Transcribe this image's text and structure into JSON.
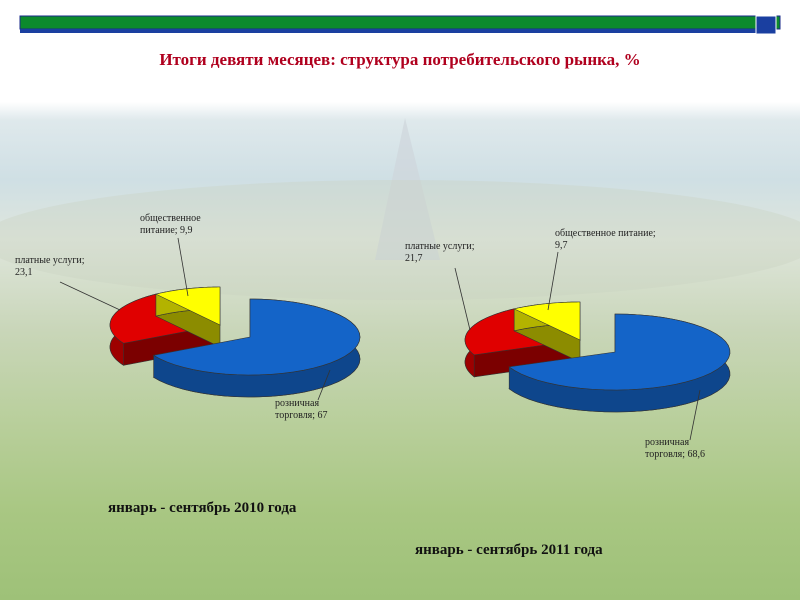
{
  "title": "Итоги девяти месяцев: структура потребительского рынка, %",
  "chart_data": [
    {
      "type": "pie",
      "title": "январь - сентябрь 2010 года",
      "values": [
        67,
        23.1,
        9.9
      ],
      "value_labels": [
        "розничная торговля; 67",
        "платные услуги; 23,1",
        "общественное питание; 9,9"
      ],
      "colors": [
        "#1464c8",
        "#e00000",
        "#ffff00"
      ]
    },
    {
      "type": "pie",
      "title": "январь - сентябрь 2011 года",
      "values": [
        68.6,
        21.7,
        9.7
      ],
      "value_labels": [
        "розничная торговля; 68,6",
        "платные услуги; 21,7",
        "общественное питание; 9,7"
      ],
      "colors": [
        "#1464c8",
        "#e00000",
        "#ffff00"
      ]
    }
  ]
}
